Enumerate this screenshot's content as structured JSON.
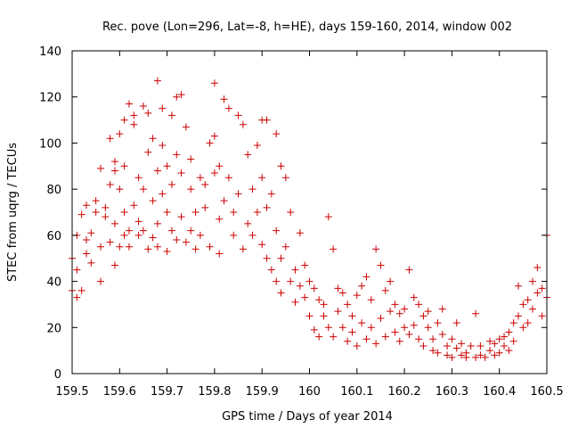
{
  "chart_data": {
    "type": "scatter",
    "title": "Rec. pove (Lon=296, Lat=-8, h=HE), days 159-160, 2014, window 002",
    "xlabel": "GPS time / Days of year 2014",
    "ylabel": "STEC from uqrg / TECUs",
    "xlim": [
      159.5,
      160.5
    ],
    "ylim": [
      0,
      140
    ],
    "x_ticks": [
      159.5,
      159.6,
      159.7,
      159.8,
      159.9,
      160.0,
      160.1,
      160.2,
      160.3,
      160.4,
      160.5
    ],
    "x_tick_labels": [
      "159.5",
      "159.6",
      "159.7",
      "159.8",
      "159.9",
      "160",
      "160.1",
      "160.2",
      "160.3",
      "160.4",
      "160.5"
    ],
    "y_ticks": [
      0,
      20,
      40,
      60,
      80,
      100,
      120,
      140
    ],
    "y_tick_labels": [
      "0",
      "20",
      "40",
      "60",
      "80",
      "100",
      "120",
      "140"
    ],
    "grid": false,
    "marker": "+",
    "marker_color": "#cc0000",
    "series": [
      {
        "points": [
          [
            159.5,
            36
          ],
          [
            159.5,
            50
          ],
          [
            159.51,
            33
          ],
          [
            159.51,
            45
          ],
          [
            159.51,
            60
          ],
          [
            159.52,
            36
          ],
          [
            159.52,
            69
          ],
          [
            159.53,
            52
          ],
          [
            159.53,
            58
          ],
          [
            159.53,
            73
          ],
          [
            159.54,
            48
          ],
          [
            159.54,
            61
          ],
          [
            159.55,
            70
          ],
          [
            159.55,
            75
          ],
          [
            159.56,
            40
          ],
          [
            159.56,
            55
          ],
          [
            159.56,
            89
          ],
          [
            159.57,
            68
          ],
          [
            159.57,
            72
          ],
          [
            159.58,
            82
          ],
          [
            159.58,
            102
          ],
          [
            159.58,
            57
          ],
          [
            159.59,
            47
          ],
          [
            159.59,
            65
          ],
          [
            159.59,
            88
          ],
          [
            159.59,
            92
          ],
          [
            159.6,
            55
          ],
          [
            159.6,
            80
          ],
          [
            159.6,
            104
          ],
          [
            159.61,
            60
          ],
          [
            159.61,
            70
          ],
          [
            159.61,
            90
          ],
          [
            159.61,
            110
          ],
          [
            159.62,
            117
          ],
          [
            159.62,
            62
          ],
          [
            159.62,
            55
          ],
          [
            159.63,
            73
          ],
          [
            159.63,
            108
          ],
          [
            159.63,
            112
          ],
          [
            159.64,
            60
          ],
          [
            159.64,
            85
          ],
          [
            159.64,
            66
          ],
          [
            159.65,
            116
          ],
          [
            159.65,
            80
          ],
          [
            159.65,
            62
          ],
          [
            159.66,
            54
          ],
          [
            159.66,
            96
          ],
          [
            159.66,
            113
          ],
          [
            159.67,
            59
          ],
          [
            159.67,
            75
          ],
          [
            159.67,
            102
          ],
          [
            159.68,
            127
          ],
          [
            159.68,
            55
          ],
          [
            159.68,
            88
          ],
          [
            159.68,
            65
          ],
          [
            159.69,
            115
          ],
          [
            159.69,
            99
          ],
          [
            159.69,
            78
          ],
          [
            159.7,
            53
          ],
          [
            159.7,
            90
          ],
          [
            159.7,
            70
          ],
          [
            159.71,
            112
          ],
          [
            159.71,
            62
          ],
          [
            159.71,
            82
          ],
          [
            159.72,
            95
          ],
          [
            159.72,
            58
          ],
          [
            159.72,
            120
          ],
          [
            159.73,
            121
          ],
          [
            159.73,
            68
          ],
          [
            159.73,
            87
          ],
          [
            159.74,
            107
          ],
          [
            159.74,
            57
          ],
          [
            159.75,
            80
          ],
          [
            159.75,
            62
          ],
          [
            159.75,
            93
          ],
          [
            159.76,
            70
          ],
          [
            159.76,
            54
          ],
          [
            159.77,
            85
          ],
          [
            159.77,
            60
          ],
          [
            159.78,
            82
          ],
          [
            159.78,
            72
          ],
          [
            159.79,
            100
          ],
          [
            159.79,
            55
          ],
          [
            159.8,
            126
          ],
          [
            159.8,
            103
          ],
          [
            159.8,
            87
          ],
          [
            159.81,
            67
          ],
          [
            159.81,
            90
          ],
          [
            159.81,
            52
          ],
          [
            159.82,
            119
          ],
          [
            159.82,
            75
          ],
          [
            159.83,
            115
          ],
          [
            159.83,
            85
          ],
          [
            159.84,
            70
          ],
          [
            159.84,
            60
          ],
          [
            159.85,
            112
          ],
          [
            159.85,
            78
          ],
          [
            159.86,
            54
          ],
          [
            159.86,
            108
          ],
          [
            159.87,
            65
          ],
          [
            159.87,
            95
          ],
          [
            159.88,
            80
          ],
          [
            159.88,
            60
          ],
          [
            159.89,
            99
          ],
          [
            159.89,
            70
          ],
          [
            159.9,
            110
          ],
          [
            159.9,
            56
          ],
          [
            159.9,
            85
          ],
          [
            159.91,
            110
          ],
          [
            159.91,
            50
          ],
          [
            159.91,
            72
          ],
          [
            159.92,
            78
          ],
          [
            159.92,
            45
          ],
          [
            159.93,
            104
          ],
          [
            159.93,
            62
          ],
          [
            159.93,
            40
          ],
          [
            159.94,
            90
          ],
          [
            159.94,
            50
          ],
          [
            159.94,
            35
          ],
          [
            159.95,
            85
          ],
          [
            159.95,
            55
          ],
          [
            159.96,
            70
          ],
          [
            159.96,
            40
          ],
          [
            159.97,
            45
          ],
          [
            159.97,
            31
          ],
          [
            159.98,
            61
          ],
          [
            159.98,
            38
          ],
          [
            159.99,
            47
          ],
          [
            159.99,
            33
          ],
          [
            160.0,
            40
          ],
          [
            160.0,
            25
          ],
          [
            160.01,
            37
          ],
          [
            160.01,
            19
          ],
          [
            160.02,
            32
          ],
          [
            160.02,
            16
          ],
          [
            160.03,
            25
          ],
          [
            160.03,
            30
          ],
          [
            160.04,
            68
          ],
          [
            160.04,
            20
          ],
          [
            160.05,
            54
          ],
          [
            160.05,
            16
          ],
          [
            160.06,
            37
          ],
          [
            160.06,
            27
          ],
          [
            160.07,
            35
          ],
          [
            160.07,
            20
          ],
          [
            160.08,
            30
          ],
          [
            160.08,
            14
          ],
          [
            160.09,
            25
          ],
          [
            160.09,
            18
          ],
          [
            160.1,
            34
          ],
          [
            160.1,
            12
          ],
          [
            160.11,
            38
          ],
          [
            160.11,
            22
          ],
          [
            160.12,
            42
          ],
          [
            160.12,
            15
          ],
          [
            160.13,
            32
          ],
          [
            160.13,
            20
          ],
          [
            160.14,
            54
          ],
          [
            160.14,
            13
          ],
          [
            160.15,
            47
          ],
          [
            160.15,
            24
          ],
          [
            160.16,
            36
          ],
          [
            160.16,
            16
          ],
          [
            160.17,
            27
          ],
          [
            160.17,
            40
          ],
          [
            160.18,
            30
          ],
          [
            160.18,
            18
          ],
          [
            160.19,
            26
          ],
          [
            160.19,
            14
          ],
          [
            160.2,
            28
          ],
          [
            160.2,
            20
          ],
          [
            160.21,
            45
          ],
          [
            160.21,
            17
          ],
          [
            160.22,
            33
          ],
          [
            160.22,
            21
          ],
          [
            160.23,
            30
          ],
          [
            160.23,
            15
          ],
          [
            160.24,
            25
          ],
          [
            160.24,
            12
          ],
          [
            160.25,
            20
          ],
          [
            160.25,
            27
          ],
          [
            160.26,
            15
          ],
          [
            160.26,
            10
          ],
          [
            160.27,
            22
          ],
          [
            160.27,
            9
          ],
          [
            160.28,
            17
          ],
          [
            160.28,
            28
          ],
          [
            160.29,
            12
          ],
          [
            160.29,
            8
          ],
          [
            160.3,
            15
          ],
          [
            160.3,
            7
          ],
          [
            160.31,
            11
          ],
          [
            160.31,
            22
          ],
          [
            160.32,
            8
          ],
          [
            160.32,
            13
          ],
          [
            160.33,
            7
          ],
          [
            160.33,
            9
          ],
          [
            160.34,
            12
          ],
          [
            160.35,
            7
          ],
          [
            160.35,
            26
          ],
          [
            160.36,
            8
          ],
          [
            160.36,
            12
          ],
          [
            160.37,
            7
          ],
          [
            160.38,
            10
          ],
          [
            160.38,
            14
          ],
          [
            160.39,
            8
          ],
          [
            160.39,
            13
          ],
          [
            160.4,
            15
          ],
          [
            160.4,
            9
          ],
          [
            160.41,
            12
          ],
          [
            160.41,
            16
          ],
          [
            160.42,
            18
          ],
          [
            160.42,
            10
          ],
          [
            160.43,
            22
          ],
          [
            160.43,
            14
          ],
          [
            160.44,
            25
          ],
          [
            160.44,
            38
          ],
          [
            160.45,
            30
          ],
          [
            160.45,
            20
          ],
          [
            160.46,
            32
          ],
          [
            160.46,
            22
          ],
          [
            160.47,
            40
          ],
          [
            160.47,
            28
          ],
          [
            160.48,
            46
          ],
          [
            160.48,
            35
          ],
          [
            160.49,
            25
          ],
          [
            160.49,
            37
          ],
          [
            160.5,
            60
          ],
          [
            160.5,
            33
          ]
        ]
      }
    ]
  }
}
